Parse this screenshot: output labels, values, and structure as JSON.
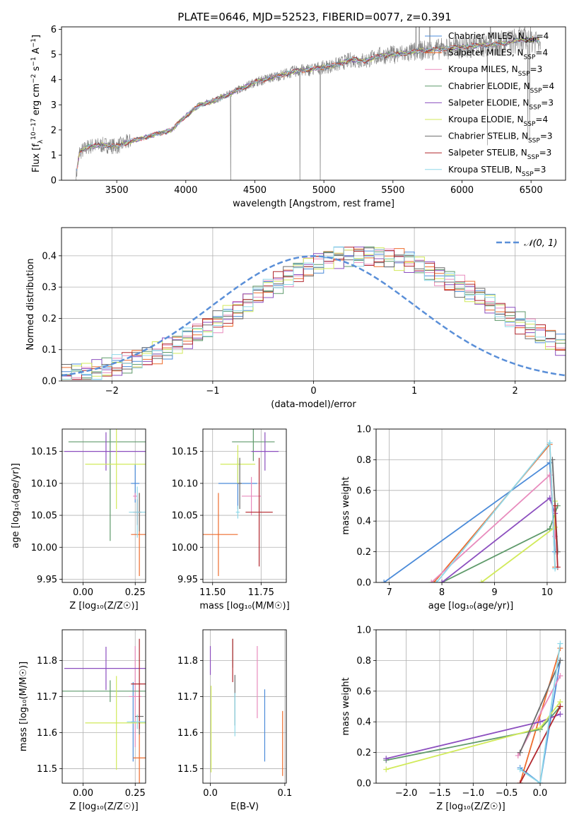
{
  "figure_title": "PLATE=0646, MJD=52523, FIBERID=0077, z=0.391",
  "model_colors": [
    "#4b8bd9",
    "#ee6c2d",
    "#e88bbd",
    "#5f9a6b",
    "#8c4fbf",
    "#d1ea5a",
    "#6b6b6b",
    "#b2282f",
    "#8fd8e8"
  ],
  "chart_data": [
    {
      "id": "spectrum",
      "type": "line",
      "title": "PLATE=0646, MJD=52523, FIBERID=0077, z=0.391",
      "xlabel": "wavelength [Angstrom, rest frame]",
      "ylabel_parts": [
        "Flux [f",
        "λ",
        "10",
        "−17",
        " erg cm",
        "−2",
        " s",
        "−1",
        " A",
        "−1",
        "]"
      ],
      "xlim": [
        3100,
        6750
      ],
      "ylim": [
        0,
        6.1
      ],
      "xticks": [
        "3500",
        "4000",
        "4500",
        "5000",
        "5500",
        "6000",
        "6500"
      ],
      "yticks": [
        "0",
        "1",
        "2",
        "3",
        "4",
        "5",
        "6"
      ],
      "grid": false,
      "legend_position": "right",
      "continuum": {
        "x": [
          3205,
          3230,
          3300,
          3400,
          3500,
          3600,
          3700,
          3800,
          3900,
          3950,
          4000,
          4100,
          4200,
          4300,
          4400,
          4500,
          4600,
          4700,
          4800,
          4900,
          5000,
          5100,
          5200,
          5300,
          5400,
          5500,
          5600,
          5700,
          5800,
          5900,
          6000,
          6100,
          6200,
          6300,
          6400,
          6500,
          6570
        ],
        "y": [
          0.1,
          1.1,
          1.35,
          1.4,
          1.35,
          1.55,
          1.7,
          1.85,
          2.0,
          2.3,
          2.55,
          3.0,
          3.15,
          3.4,
          3.65,
          3.9,
          4.05,
          4.2,
          4.35,
          4.4,
          4.5,
          4.6,
          4.8,
          4.75,
          4.95,
          5.0,
          5.05,
          5.15,
          5.2,
          5.25,
          5.3,
          5.35,
          5.4,
          5.45,
          5.55,
          5.6,
          5.6
        ]
      },
      "series": [
        {
          "name_parts": [
            "Chabrier MILES, N",
            "SSP",
            "=4"
          ]
        },
        {
          "name_parts": [
            "Salpeter MILES, N",
            "SSP",
            "=4"
          ]
        },
        {
          "name_parts": [
            "Kroupa MILES, N",
            "SSP",
            "=3"
          ]
        },
        {
          "name_parts": [
            "Chabrier ELODIE, N",
            "SSP",
            "=4"
          ]
        },
        {
          "name_parts": [
            "Salpeter ELODIE, N",
            "SSP",
            "=3"
          ]
        },
        {
          "name_parts": [
            "Kroupa ELODIE, N",
            "SSP",
            "=4"
          ]
        },
        {
          "name_parts": [
            "Chabrier STELIB, N",
            "SSP",
            "=3"
          ]
        },
        {
          "name_parts": [
            "Salpeter STELIB, N",
            "SSP",
            "=3"
          ]
        },
        {
          "name_parts": [
            "Kroupa STELIB, N",
            "SSP",
            "=3"
          ]
        }
      ]
    },
    {
      "id": "residuals",
      "type": "histogram",
      "xlabel": "(data-model)/error",
      "ylabel": "Normed distribution",
      "xlim": [
        -2.5,
        2.5
      ],
      "ylim": [
        0,
        0.49
      ],
      "xticks": [
        "−2",
        "−1",
        "0",
        "1",
        "2"
      ],
      "yticks": [
        "0.0",
        "0.1",
        "0.2",
        "0.3",
        "0.4"
      ],
      "grid": true,
      "legend_position": "top-right",
      "reference_curve_label": "𝒩(0, 1)",
      "bin_width": 0.1,
      "bin_start": -2.5,
      "base_values": [
        0.018,
        0.022,
        0.028,
        0.033,
        0.04,
        0.048,
        0.056,
        0.066,
        0.078,
        0.09,
        0.105,
        0.12,
        0.135,
        0.152,
        0.17,
        0.19,
        0.21,
        0.232,
        0.254,
        0.274,
        0.296,
        0.316,
        0.336,
        0.352,
        0.368,
        0.38,
        0.39,
        0.396,
        0.4,
        0.402,
        0.402,
        0.4,
        0.396,
        0.39,
        0.38,
        0.368,
        0.354,
        0.338,
        0.322,
        0.304,
        0.286,
        0.266,
        0.246,
        0.226,
        0.206,
        0.186,
        0.166,
        0.148,
        0.13,
        0.113
      ]
    },
    {
      "id": "age-vs-z",
      "type": "scatter-errorbar",
      "xlabel": "Z [log₁₀(Z/Z☉)]",
      "ylabel": "age  [log₁₀(age/yr)]",
      "xlim": [
        -0.1,
        0.3
      ],
      "ylim": [
        9.945,
        10.185
      ],
      "xticks": [
        "0.00",
        "0.25"
      ],
      "yticks": [
        "9.95",
        "10.00",
        "10.05",
        "10.10",
        "10.15"
      ],
      "grid": true,
      "points": [
        {
          "x": 0.25,
          "xerr": 0.02,
          "y": 10.1,
          "yerr": 0.03
        },
        {
          "x": 0.27,
          "xerr": 0.04,
          "y": 10.02,
          "yerr": 0.065
        },
        {
          "x": 0.25,
          "xerr": 0.01,
          "y": 10.08,
          "yerr": 0.005
        },
        {
          "x": 0.13,
          "xerr": 0.2,
          "y": 10.165,
          "yerr": 0.155
        },
        {
          "x": 0.11,
          "xerr": 0.2,
          "y": 10.15,
          "yerr": 0.03
        },
        {
          "x": 0.16,
          "xerr": 0.15,
          "y": 10.13,
          "yerr": 0.07
        },
        {
          "x": 0.27,
          "xerr": 0.01,
          "y": 10.055,
          "yerr": 0.03
        },
        {
          "x": 0.26,
          "xerr": 0.02,
          "y": 10.055,
          "yerr": 0.02
        },
        {
          "x": 0.26,
          "xerr": 0.04,
          "y": 10.055,
          "yerr": 0.04
        }
      ]
    },
    {
      "id": "age-vs-mass",
      "type": "scatter-errorbar",
      "xlabel": "mass [log₁₀(M/M☉)]",
      "ylabel": "",
      "xlim": [
        11.45,
        11.88
      ],
      "ylim": [
        9.945,
        10.185
      ],
      "xticks": [
        "11.50",
        "11.75"
      ],
      "yticks": [
        "9.95",
        "10.00",
        "10.05",
        "10.10",
        "10.15"
      ],
      "grid": true,
      "points": [
        {
          "x": 11.63,
          "xerr": 0.1,
          "y": 10.1,
          "yerr": 0.04
        },
        {
          "x": 11.53,
          "xerr": 0.1,
          "y": 10.02,
          "yerr": 0.065
        },
        {
          "x": 11.7,
          "xerr": 0.05,
          "y": 10.08,
          "yerr": 0.03
        },
        {
          "x": 11.71,
          "xerr": 0.11,
          "y": 10.165,
          "yerr": 0.03
        },
        {
          "x": 11.77,
          "xerr": 0.07,
          "y": 10.15,
          "yerr": 0.03
        },
        {
          "x": 11.63,
          "xerr": 0.09,
          "y": 10.13,
          "yerr": 0.03
        },
        {
          "x": 11.64,
          "xerr": 0.01,
          "y": 10.1,
          "yerr": 0.04
        },
        {
          "x": 11.74,
          "xerr": 0.07,
          "y": 10.055,
          "yerr": 0.085
        },
        {
          "x": 11.63,
          "xerr": 0.01,
          "y": 10.055,
          "yerr": 0.01
        }
      ]
    },
    {
      "id": "weight-vs-age",
      "type": "line",
      "xlabel": "age  [log₁₀(age/yr)]",
      "ylabel": "mass weight",
      "xlim": [
        6.75,
        10.35
      ],
      "ylim": [
        0,
        1
      ],
      "xticks": [
        "7",
        "8",
        "9",
        "10"
      ],
      "yticks": [
        "0.0",
        "0.2",
        "0.4",
        "0.6",
        "0.8",
        "1.0"
      ],
      "grid": true,
      "series": [
        {
          "x": [
            6.9,
            10.05,
            10.15
          ],
          "y": [
            0.0,
            0.78,
            0.2
          ]
        },
        {
          "x": [
            7.85,
            10.05,
            10.15
          ],
          "y": [
            0.0,
            0.9,
            0.1
          ]
        },
        {
          "x": [
            7.8,
            10.05,
            10.15
          ],
          "y": [
            0.0,
            0.7,
            0.3
          ]
        },
        {
          "x": [
            8.0,
            10.05,
            10.2
          ],
          "y": [
            0.0,
            0.35,
            0.5
          ]
        },
        {
          "x": [
            8.0,
            10.05,
            10.15
          ],
          "y": [
            0.0,
            0.55,
            0.45
          ]
        },
        {
          "x": [
            8.75,
            10.15,
            10.15
          ],
          "y": [
            0.0,
            0.36,
            0.53
          ]
        },
        {
          "x": [
            10.1,
            10.2
          ],
          "y": [
            0.8,
            0.2
          ]
        },
        {
          "x": [
            10.15,
            10.2
          ],
          "y": [
            0.5,
            0.1
          ]
        },
        {
          "x": [
            7.9,
            10.05,
            10.15
          ],
          "y": [
            0.0,
            0.91,
            0.09
          ]
        }
      ]
    },
    {
      "id": "mass-vs-z",
      "type": "scatter-errorbar",
      "xlabel": "Z [log₁₀(Z/Z☉)]",
      "ylabel": "mass [log₁₀(M/M☉)]",
      "xlim": [
        -0.1,
        0.3
      ],
      "ylim": [
        11.46,
        11.885
      ],
      "xticks": [
        "0.00",
        "0.25"
      ],
      "yticks": [
        "11.5",
        "11.6",
        "11.7",
        "11.8"
      ],
      "grid": true,
      "points": [
        {
          "x": 0.24,
          "xerr": 0.01,
          "y": 11.63,
          "yerr": 0.11
        },
        {
          "x": 0.27,
          "xerr": 0.03,
          "y": 11.53,
          "yerr": 0.09
        },
        {
          "x": 0.25,
          "xerr": 0.03,
          "y": 11.7,
          "yerr": 0.14
        },
        {
          "x": 0.13,
          "xerr": 0.23,
          "y": 11.715,
          "yerr": 0.03
        },
        {
          "x": 0.11,
          "xerr": 0.2,
          "y": 11.778,
          "yerr": 0.06
        },
        {
          "x": 0.16,
          "xerr": 0.15,
          "y": 11.627,
          "yerr": 0.13
        },
        {
          "x": 0.27,
          "xerr": 0.02,
          "y": 11.645,
          "yerr": 0.05
        },
        {
          "x": 0.27,
          "xerr": 0.04,
          "y": 11.735,
          "yerr": 0.125
        },
        {
          "x": 0.26,
          "xerr": 0.05,
          "y": 11.63,
          "yerr": 0.02
        }
      ]
    },
    {
      "id": "mass-vs-ebv",
      "type": "scatter-errorbar",
      "xlabel": "E(B-V)",
      "ylabel": "",
      "xlim": [
        -0.01,
        0.102
      ],
      "ylim": [
        11.46,
        11.885
      ],
      "xticks": [
        "0.0",
        "0.1"
      ],
      "yticks": [
        "11.5",
        "11.6",
        "11.7",
        "11.8"
      ],
      "grid": true,
      "points": [
        {
          "x": 0.073,
          "xerr": 0.0,
          "y": 11.62,
          "yerr": 0.1
        },
        {
          "x": 0.097,
          "xerr": 0.0,
          "y": 11.57,
          "yerr": 0.09
        },
        {
          "x": 0.063,
          "xerr": 0.0,
          "y": 11.74,
          "yerr": 0.1
        },
        {
          "x": 0.03,
          "xerr": 0.0,
          "y": 11.82,
          "yerr": 0.04
        },
        {
          "x": 0.0,
          "xerr": 0.0,
          "y": 11.8,
          "yerr": 0.04
        },
        {
          "x": 0.001,
          "xerr": 0.0,
          "y": 11.61,
          "yerr": 0.12
        },
        {
          "x": 0.033,
          "xerr": 0.0,
          "y": 11.69,
          "yerr": 0.07
        },
        {
          "x": 0.03,
          "xerr": 0.0,
          "y": 11.8,
          "yerr": 0.06
        },
        {
          "x": 0.033,
          "xerr": 0.0,
          "y": 11.65,
          "yerr": 0.06
        }
      ]
    },
    {
      "id": "weight-vs-z",
      "type": "line",
      "xlabel": "Z [log₁₀(Z/Z☉)]",
      "ylabel": "mass weight",
      "xlim": [
        -2.45,
        0.38
      ],
      "ylim": [
        0,
        1
      ],
      "xticks": [
        "−2.0",
        "−1.5",
        "−1.0",
        "−0.5",
        "0.0"
      ],
      "yticks": [
        "0.0",
        "0.2",
        "0.4",
        "0.6",
        "0.8",
        "1.0"
      ],
      "grid": true,
      "series": [
        {
          "x": [
            -0.3,
            0.0,
            0.3
          ],
          "y": [
            0.1,
            0.0,
            0.8
          ]
        },
        {
          "x": [
            -0.3,
            0.3
          ],
          "y": [
            0.0,
            0.88
          ]
        },
        {
          "x": [
            -0.33,
            0.3
          ],
          "y": [
            0.18,
            0.7
          ]
        },
        {
          "x": [
            -2.3,
            0.0,
            0.3
          ],
          "y": [
            0.15,
            0.35,
            0.5
          ]
        },
        {
          "x": [
            -2.3,
            0.0,
            0.3
          ],
          "y": [
            0.16,
            0.4,
            0.45
          ]
        },
        {
          "x": [
            -2.3,
            0.0,
            0.3
          ],
          "y": [
            0.09,
            0.36,
            0.53
          ]
        },
        {
          "x": [
            -0.3,
            0.3
          ],
          "y": [
            0.2,
            0.8
          ]
        },
        {
          "x": [
            -0.3,
            0.3
          ],
          "y": [
            0.0,
            0.5
          ]
        },
        {
          "x": [
            -0.3,
            0.0,
            0.3
          ],
          "y": [
            0.09,
            0.0,
            0.91
          ]
        }
      ]
    }
  ]
}
